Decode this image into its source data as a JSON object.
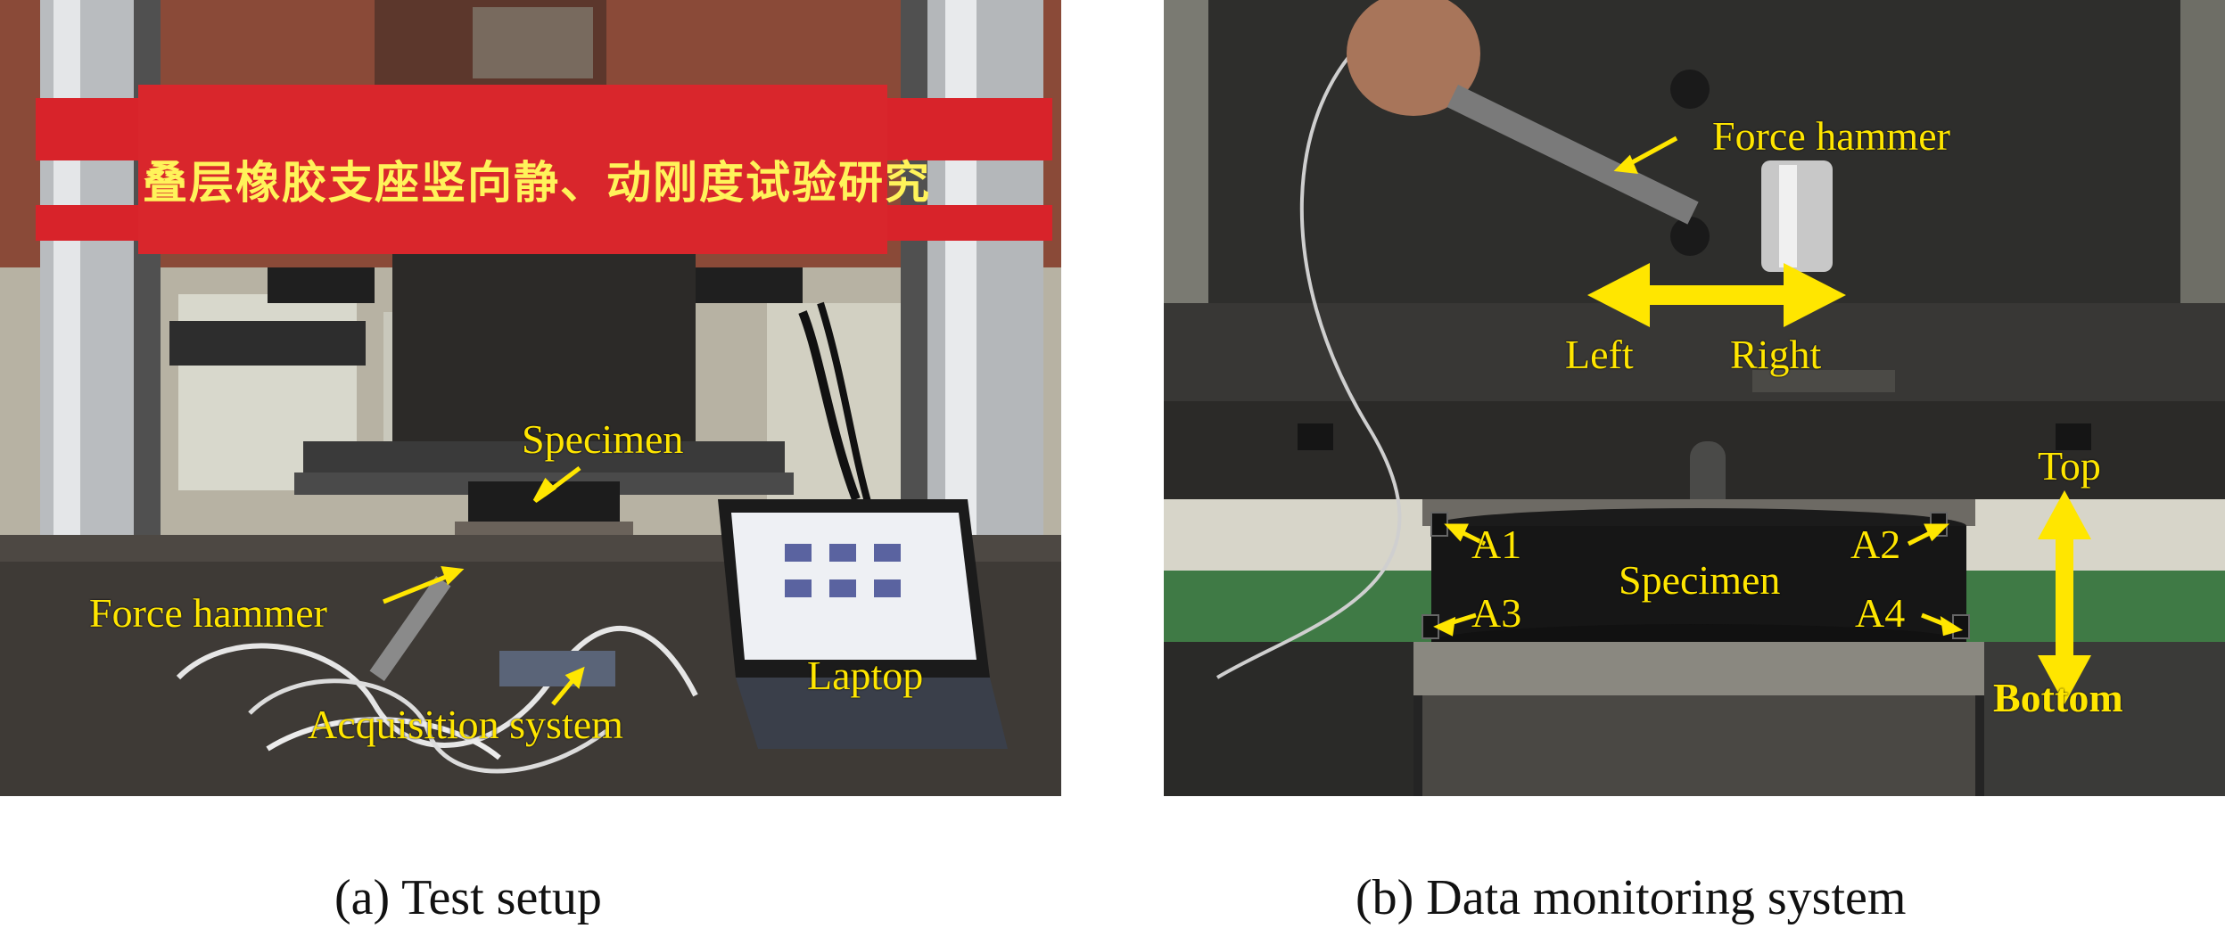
{
  "panel_a": {
    "banner_text": "叠层橡胶支座竖向静、动刚度试验研究",
    "labels": {
      "specimen": "Specimen",
      "force_hammer": "Force hammer",
      "acquisition_system": "Acquisition system",
      "laptop": "Laptop"
    },
    "caption": "(a) Test setup"
  },
  "panel_b": {
    "labels": {
      "force_hammer": "Force hammer",
      "left": "Left",
      "right": "Right",
      "top": "Top",
      "bottom": "Bottom",
      "specimen": "Specimen",
      "a1": "A1",
      "a2": "A2",
      "a3": "A3",
      "a4": "A4"
    },
    "caption": "(b) Data monitoring system"
  },
  "colors": {
    "annotation": "#ffe600",
    "banner": "#d8232a"
  }
}
